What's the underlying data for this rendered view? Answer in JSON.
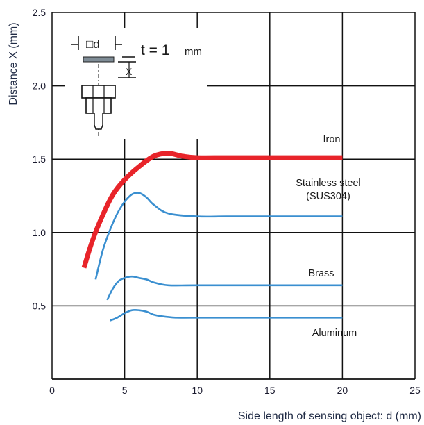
{
  "chart_data": {
    "type": "line",
    "xlabel": "Side length of sensing object: d (mm)",
    "ylabel": "Distance X (mm)",
    "xlim": [
      0,
      25
    ],
    "ylim": [
      0,
      2.5
    ],
    "xticks": [
      "0",
      "5",
      "10",
      "15",
      "20",
      "25"
    ],
    "yticks": [
      "0.5",
      "1.0",
      "1.5",
      "2.0",
      "2.5"
    ],
    "grid": true,
    "series": [
      {
        "name": "Iron",
        "label_lines": [
          "Iron"
        ],
        "color": "#e8242a",
        "x": [
          2.2,
          2.8,
          3.5,
          4.2,
          5.0,
          6.0,
          7.0,
          8.0,
          9.0,
          10.0,
          12.0,
          15.0,
          20.0
        ],
        "y": [
          0.76,
          0.95,
          1.12,
          1.26,
          1.36,
          1.45,
          1.52,
          1.54,
          1.52,
          1.51,
          1.51,
          1.51,
          1.51
        ]
      },
      {
        "name": "Stainless steel (SUS304)",
        "label_lines": [
          "Stainless steel",
          "(SUS304)"
        ],
        "color": "#3a8fd0",
        "x": [
          3.0,
          3.5,
          4.0,
          4.5,
          5.0,
          5.5,
          6.0,
          6.5,
          7.0,
          8.0,
          10.0,
          12.0,
          15.0,
          20.0
        ],
        "y": [
          0.68,
          0.88,
          1.02,
          1.13,
          1.21,
          1.26,
          1.27,
          1.24,
          1.19,
          1.13,
          1.11,
          1.11,
          1.11,
          1.11
        ]
      },
      {
        "name": "Brass",
        "label_lines": [
          "Brass"
        ],
        "color": "#3a8fd0",
        "x": [
          3.8,
          4.2,
          4.6,
          5.0,
          5.5,
          6.0,
          6.5,
          7.0,
          8.0,
          10.0,
          15.0,
          20.0
        ],
        "y": [
          0.54,
          0.62,
          0.67,
          0.69,
          0.7,
          0.69,
          0.68,
          0.66,
          0.64,
          0.64,
          0.64,
          0.64
        ]
      },
      {
        "name": "Aluminum",
        "label_lines": [
          "Aluminum"
        ],
        "color": "#3a8fd0",
        "x": [
          4.0,
          4.5,
          5.0,
          5.5,
          6.0,
          6.5,
          7.0,
          7.5,
          8.5,
          10.0,
          15.0,
          20.0
        ],
        "y": [
          0.4,
          0.42,
          0.45,
          0.47,
          0.47,
          0.46,
          0.44,
          0.43,
          0.42,
          0.42,
          0.42,
          0.42
        ]
      }
    ],
    "inset": {
      "side_label": "□d",
      "thickness_label": "t = 1",
      "thickness_unit": "mm",
      "distance_label": "X"
    }
  }
}
